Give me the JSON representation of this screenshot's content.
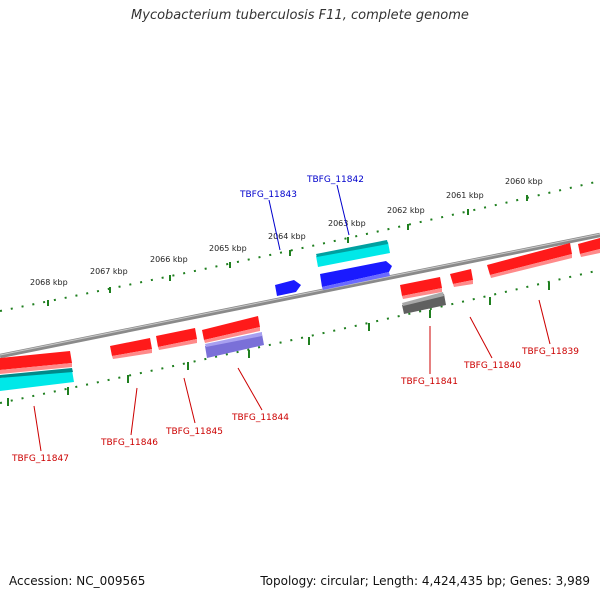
{
  "title": "Mycobacterium tuberculosis F11, complete genome",
  "accession": "Accession: NC_009565",
  "genome_stats": "Topology: circular; Length: 4,424,435 bp; Genes: 3,989",
  "colors": {
    "backbone": "#8a8a8a",
    "ruler": "#1f7f1f",
    "gene_forward": "#ff1a1a",
    "gene_cds_forward": "#00e0e0",
    "gene_reverse": "#ff1a1a",
    "gene_cds_reverse_blue": "#1a1aff",
    "gene_cds_reverse_purple": "#7a70d8",
    "gene_gray": "#606060",
    "label_red": "#cc0000",
    "label_blue": "#0000cc"
  },
  "ruler_labels": [
    "2068 kbp",
    "2067 kbp",
    "2066 kbp",
    "2065 kbp",
    "2064 kbp",
    "2063 kbp",
    "2062 kbp",
    "2061 kbp",
    "2060 kbp"
  ],
  "gene_labels": [
    {
      "id": "TBFG_11847",
      "color": "red"
    },
    {
      "id": "TBFG_11846",
      "color": "red"
    },
    {
      "id": "TBFG_11845",
      "color": "red"
    },
    {
      "id": "TBFG_11844",
      "color": "red"
    },
    {
      "id": "TBFG_11843",
      "color": "blue"
    },
    {
      "id": "TBFG_11842",
      "color": "blue"
    },
    {
      "id": "TBFG_11841",
      "color": "red"
    },
    {
      "id": "TBFG_11840",
      "color": "red"
    },
    {
      "id": "TBFG_11839",
      "color": "red"
    }
  ]
}
